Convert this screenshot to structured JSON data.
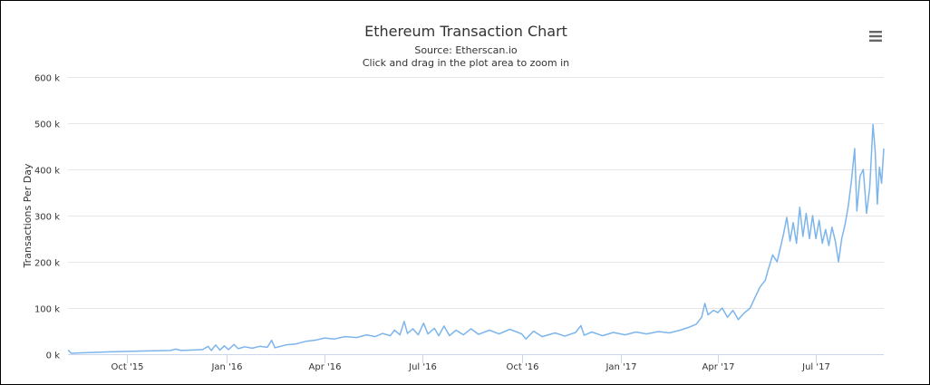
{
  "chart_data": {
    "type": "line",
    "title": "Ethereum Transaction Chart",
    "subtitle": "Source: Etherscan.io",
    "hint": "Click and drag in the plot area to zoom in",
    "ylabel": "Transactions Per Day",
    "xlabel": "",
    "ylim": [
      0,
      600000
    ],
    "y_ticks": [
      0,
      100000,
      200000,
      300000,
      400000,
      500000,
      600000
    ],
    "y_tick_labels": [
      "0 k",
      "100 k",
      "200 k",
      "300 k",
      "400 k",
      "500 k",
      "600 k"
    ],
    "x_range": [
      "2015-08-07",
      "2017-09-02"
    ],
    "x_ticks": [
      {
        "date": "2015-10-01",
        "label": "Oct '15"
      },
      {
        "date": "2016-01-01",
        "label": "Jan '16"
      },
      {
        "date": "2016-04-01",
        "label": "Apr '16"
      },
      {
        "date": "2016-07-01",
        "label": "Jul '16"
      },
      {
        "date": "2016-10-01",
        "label": "Oct '16"
      },
      {
        "date": "2017-01-01",
        "label": "Jan '17"
      },
      {
        "date": "2017-04-01",
        "label": "Apr '17"
      },
      {
        "date": "2017-07-01",
        "label": "Jul '17"
      }
    ],
    "grid": true,
    "legend": "none",
    "series": [
      {
        "color": "#7cb5ec",
        "points": [
          [
            "2015-08-07",
            9000
          ],
          [
            "2015-08-10",
            2000
          ],
          [
            "2015-08-20",
            3000
          ],
          [
            "2015-09-01",
            4000
          ],
          [
            "2015-09-15",
            5000
          ],
          [
            "2015-10-01",
            6000
          ],
          [
            "2015-10-20",
            7000
          ],
          [
            "2015-11-10",
            8000
          ],
          [
            "2015-11-15",
            11000
          ],
          [
            "2015-11-20",
            8000
          ],
          [
            "2015-12-01",
            9000
          ],
          [
            "2015-12-10",
            10000
          ],
          [
            "2015-12-15",
            17000
          ],
          [
            "2015-12-18",
            8000
          ],
          [
            "2015-12-22",
            20000
          ],
          [
            "2015-12-26",
            9000
          ],
          [
            "2015-12-30",
            18000
          ],
          [
            "2016-01-03",
            10000
          ],
          [
            "2016-01-08",
            21000
          ],
          [
            "2016-01-12",
            12000
          ],
          [
            "2016-01-18",
            16000
          ],
          [
            "2016-01-25",
            13000
          ],
          [
            "2016-02-01",
            17000
          ],
          [
            "2016-02-08",
            15000
          ],
          [
            "2016-02-12",
            30000
          ],
          [
            "2016-02-15",
            14000
          ],
          [
            "2016-02-25",
            20000
          ],
          [
            "2016-03-05",
            22000
          ],
          [
            "2016-03-15",
            28000
          ],
          [
            "2016-03-25",
            31000
          ],
          [
            "2016-04-01",
            35000
          ],
          [
            "2016-04-10",
            33000
          ],
          [
            "2016-04-20",
            38000
          ],
          [
            "2016-05-01",
            36000
          ],
          [
            "2016-05-10",
            42000
          ],
          [
            "2016-05-18",
            38000
          ],
          [
            "2016-05-25",
            45000
          ],
          [
            "2016-06-01",
            40000
          ],
          [
            "2016-06-05",
            52000
          ],
          [
            "2016-06-10",
            42000
          ],
          [
            "2016-06-14",
            71000
          ],
          [
            "2016-06-17",
            45000
          ],
          [
            "2016-06-22",
            55000
          ],
          [
            "2016-06-27",
            42000
          ],
          [
            "2016-07-02",
            67000
          ],
          [
            "2016-07-06",
            44000
          ],
          [
            "2016-07-12",
            56000
          ],
          [
            "2016-07-16",
            40000
          ],
          [
            "2016-07-21",
            61000
          ],
          [
            "2016-07-26",
            40000
          ],
          [
            "2016-08-01",
            52000
          ],
          [
            "2016-08-08",
            42000
          ],
          [
            "2016-08-15",
            55000
          ],
          [
            "2016-08-22",
            43000
          ],
          [
            "2016-09-01",
            52000
          ],
          [
            "2016-09-10",
            44000
          ],
          [
            "2016-09-20",
            54000
          ],
          [
            "2016-10-01",
            44000
          ],
          [
            "2016-10-05",
            33000
          ],
          [
            "2016-10-12",
            50000
          ],
          [
            "2016-10-20",
            38000
          ],
          [
            "2016-11-01",
            46000
          ],
          [
            "2016-11-10",
            39000
          ],
          [
            "2016-11-20",
            47000
          ],
          [
            "2016-11-25",
            62000
          ],
          [
            "2016-11-28",
            41000
          ],
          [
            "2016-12-05",
            48000
          ],
          [
            "2016-12-15",
            40000
          ],
          [
            "2016-12-25",
            47000
          ],
          [
            "2017-01-05",
            42000
          ],
          [
            "2017-01-15",
            48000
          ],
          [
            "2017-01-25",
            44000
          ],
          [
            "2017-02-05",
            49000
          ],
          [
            "2017-02-15",
            46000
          ],
          [
            "2017-02-25",
            52000
          ],
          [
            "2017-03-05",
            58000
          ],
          [
            "2017-03-12",
            65000
          ],
          [
            "2017-03-17",
            80000
          ],
          [
            "2017-03-20",
            110000
          ],
          [
            "2017-03-23",
            85000
          ],
          [
            "2017-03-28",
            95000
          ],
          [
            "2017-04-01",
            90000
          ],
          [
            "2017-04-05",
            100000
          ],
          [
            "2017-04-10",
            80000
          ],
          [
            "2017-04-15",
            95000
          ],
          [
            "2017-04-20",
            75000
          ],
          [
            "2017-04-25",
            88000
          ],
          [
            "2017-05-01",
            100000
          ],
          [
            "2017-05-05",
            120000
          ],
          [
            "2017-05-10",
            145000
          ],
          [
            "2017-05-15",
            160000
          ],
          [
            "2017-05-18",
            185000
          ],
          [
            "2017-05-22",
            215000
          ],
          [
            "2017-05-26",
            200000
          ],
          [
            "2017-05-29",
            230000
          ],
          [
            "2017-06-01",
            260000
          ],
          [
            "2017-06-04",
            296000
          ],
          [
            "2017-06-07",
            245000
          ],
          [
            "2017-06-10",
            285000
          ],
          [
            "2017-06-13",
            240000
          ],
          [
            "2017-06-16",
            318000
          ],
          [
            "2017-06-19",
            255000
          ],
          [
            "2017-06-22",
            305000
          ],
          [
            "2017-06-25",
            250000
          ],
          [
            "2017-06-28",
            300000
          ],
          [
            "2017-07-01",
            250000
          ],
          [
            "2017-07-04",
            290000
          ],
          [
            "2017-07-07",
            240000
          ],
          [
            "2017-07-10",
            270000
          ],
          [
            "2017-07-13",
            235000
          ],
          [
            "2017-07-16",
            275000
          ],
          [
            "2017-07-19",
            245000
          ],
          [
            "2017-07-22",
            200000
          ],
          [
            "2017-07-25",
            250000
          ],
          [
            "2017-07-28",
            280000
          ],
          [
            "2017-07-31",
            320000
          ],
          [
            "2017-08-03",
            375000
          ],
          [
            "2017-08-06",
            445000
          ],
          [
            "2017-08-08",
            310000
          ],
          [
            "2017-08-11",
            385000
          ],
          [
            "2017-08-14",
            400000
          ],
          [
            "2017-08-17",
            305000
          ],
          [
            "2017-08-20",
            360000
          ],
          [
            "2017-08-23",
            497000
          ],
          [
            "2017-08-25",
            440000
          ],
          [
            "2017-08-27",
            325000
          ],
          [
            "2017-08-29",
            405000
          ],
          [
            "2017-08-31",
            370000
          ],
          [
            "2017-09-02",
            445000
          ]
        ]
      }
    ]
  }
}
